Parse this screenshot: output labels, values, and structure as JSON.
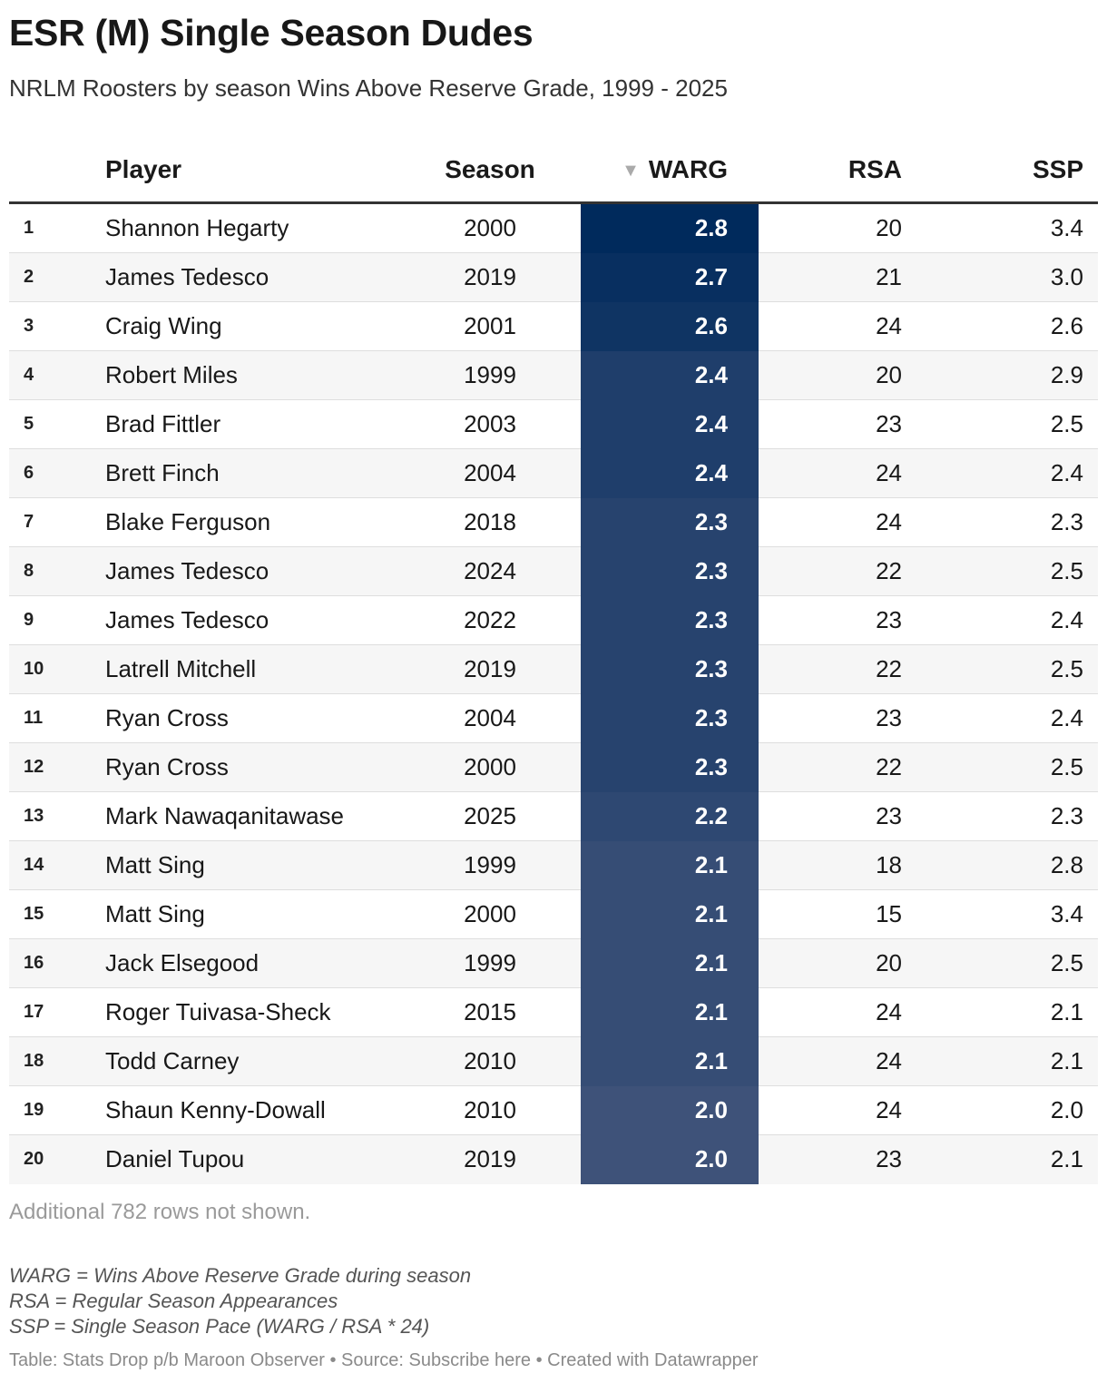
{
  "title": "ESR (M) Single Season Dudes",
  "subtitle": "NRLM Roosters by season Wins Above Reserve Grade, 1999 - 2025",
  "columns": {
    "player": "Player",
    "season": "Season",
    "warg": "WARG",
    "rsa": "RSA",
    "ssp": "SSP"
  },
  "sort_icon": "sort-descending-icon",
  "heat_colors": {
    "high": "#002a5c",
    "low": "#3e5279"
  },
  "rows": [
    {
      "rank": "1",
      "player": "Shannon Hegarty",
      "season": "2000",
      "warg": "2.8",
      "rsa": "20",
      "ssp": "3.4"
    },
    {
      "rank": "2",
      "player": "James Tedesco",
      "season": "2019",
      "warg": "2.7",
      "rsa": "21",
      "ssp": "3.0"
    },
    {
      "rank": "3",
      "player": "Craig Wing",
      "season": "2001",
      "warg": "2.6",
      "rsa": "24",
      "ssp": "2.6"
    },
    {
      "rank": "4",
      "player": "Robert Miles",
      "season": "1999",
      "warg": "2.4",
      "rsa": "20",
      "ssp": "2.9"
    },
    {
      "rank": "5",
      "player": "Brad Fittler",
      "season": "2003",
      "warg": "2.4",
      "rsa": "23",
      "ssp": "2.5"
    },
    {
      "rank": "6",
      "player": "Brett Finch",
      "season": "2004",
      "warg": "2.4",
      "rsa": "24",
      "ssp": "2.4"
    },
    {
      "rank": "7",
      "player": "Blake Ferguson",
      "season": "2018",
      "warg": "2.3",
      "rsa": "24",
      "ssp": "2.3"
    },
    {
      "rank": "8",
      "player": "James Tedesco",
      "season": "2024",
      "warg": "2.3",
      "rsa": "22",
      "ssp": "2.5"
    },
    {
      "rank": "9",
      "player": "James Tedesco",
      "season": "2022",
      "warg": "2.3",
      "rsa": "23",
      "ssp": "2.4"
    },
    {
      "rank": "10",
      "player": "Latrell Mitchell",
      "season": "2019",
      "warg": "2.3",
      "rsa": "22",
      "ssp": "2.5"
    },
    {
      "rank": "11",
      "player": "Ryan Cross",
      "season": "2004",
      "warg": "2.3",
      "rsa": "23",
      "ssp": "2.4"
    },
    {
      "rank": "12",
      "player": "Ryan Cross",
      "season": "2000",
      "warg": "2.3",
      "rsa": "22",
      "ssp": "2.5"
    },
    {
      "rank": "13",
      "player": "Mark Nawaqanitawase",
      "season": "2025",
      "warg": "2.2",
      "rsa": "23",
      "ssp": "2.3"
    },
    {
      "rank": "14",
      "player": "Matt Sing",
      "season": "1999",
      "warg": "2.1",
      "rsa": "18",
      "ssp": "2.8"
    },
    {
      "rank": "15",
      "player": "Matt Sing",
      "season": "2000",
      "warg": "2.1",
      "rsa": "15",
      "ssp": "3.4"
    },
    {
      "rank": "16",
      "player": "Jack Elsegood",
      "season": "1999",
      "warg": "2.1",
      "rsa": "20",
      "ssp": "2.5"
    },
    {
      "rank": "17",
      "player": "Roger Tuivasa-Sheck",
      "season": "2015",
      "warg": "2.1",
      "rsa": "24",
      "ssp": "2.1"
    },
    {
      "rank": "18",
      "player": "Todd Carney",
      "season": "2010",
      "warg": "2.1",
      "rsa": "24",
      "ssp": "2.1"
    },
    {
      "rank": "19",
      "player": "Shaun Kenny-Dowall",
      "season": "2010",
      "warg": "2.0",
      "rsa": "24",
      "ssp": "2.0"
    },
    {
      "rank": "20",
      "player": "Daniel Tupou",
      "season": "2019",
      "warg": "2.0",
      "rsa": "23",
      "ssp": "2.1"
    }
  ],
  "more_rows_note": "Additional 782 rows not shown.",
  "notes": [
    "WARG = Wins Above Reserve Grade during season",
    "RSA = Regular Season Appearances",
    "SSP = Single Season Pace (WARG / RSA * 24)"
  ],
  "footer": "Table: Stats Drop p/b Maroon Observer • Source: Subscribe here • Created with Datawrapper"
}
